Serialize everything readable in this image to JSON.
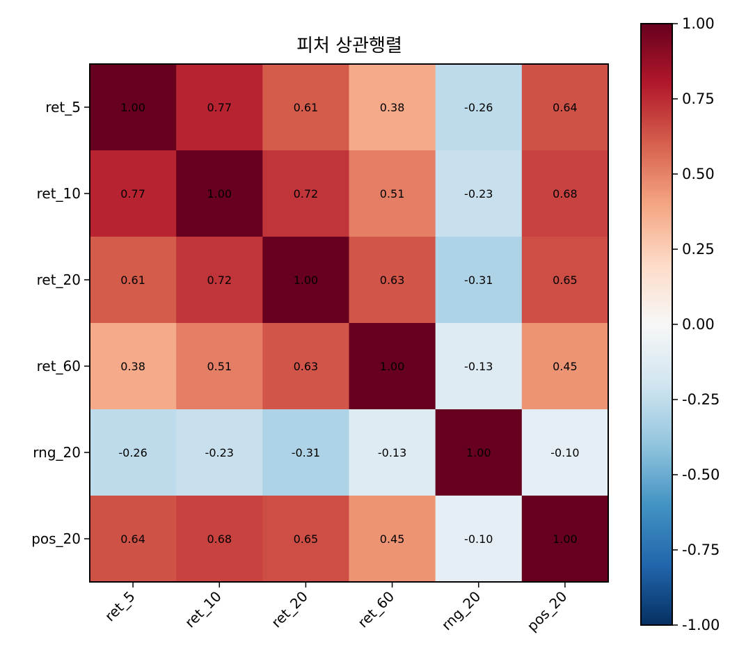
{
  "chart_data": {
    "type": "heatmap",
    "title": "피처 상관행렬",
    "xlabel": "",
    "ylabel": "",
    "categories": [
      "ret_5",
      "ret_10",
      "ret_20",
      "ret_60",
      "rng_20",
      "pos_20"
    ],
    "values": [
      [
        1.0,
        0.77,
        0.61,
        0.38,
        -0.26,
        0.64
      ],
      [
        0.77,
        1.0,
        0.72,
        0.51,
        -0.23,
        0.68
      ],
      [
        0.61,
        0.72,
        1.0,
        0.63,
        -0.31,
        0.65
      ],
      [
        0.38,
        0.51,
        0.63,
        1.0,
        -0.13,
        0.45
      ],
      [
        -0.26,
        -0.23,
        -0.31,
        -0.13,
        1.0,
        -0.1
      ],
      [
        0.64,
        0.68,
        0.65,
        0.45,
        -0.1,
        1.0
      ]
    ],
    "value_labels": [
      [
        "1.00",
        "0.77",
        "0.61",
        "0.38",
        "-0.26",
        "0.64"
      ],
      [
        "0.77",
        "1.00",
        "0.72",
        "0.51",
        "-0.23",
        "0.68"
      ],
      [
        "0.61",
        "0.72",
        "1.00",
        "0.63",
        "-0.31",
        "0.65"
      ],
      [
        "0.38",
        "0.51",
        "0.63",
        "1.00",
        "-0.13",
        "0.45"
      ],
      [
        "-0.26",
        "-0.23",
        "-0.31",
        "-0.13",
        "1.00",
        "-0.10"
      ],
      [
        "0.64",
        "0.68",
        "0.65",
        "0.45",
        "-0.10",
        "1.00"
      ]
    ],
    "colormap": "RdBu_r",
    "vmin": -1.0,
    "vmax": 1.0,
    "colorbar_ticks": [
      "1.00",
      "0.75",
      "0.50",
      "0.25",
      "0.00",
      "-0.25",
      "-0.50",
      "-0.75",
      "-1.00"
    ],
    "grid": false,
    "legend": "colorbar-right"
  }
}
